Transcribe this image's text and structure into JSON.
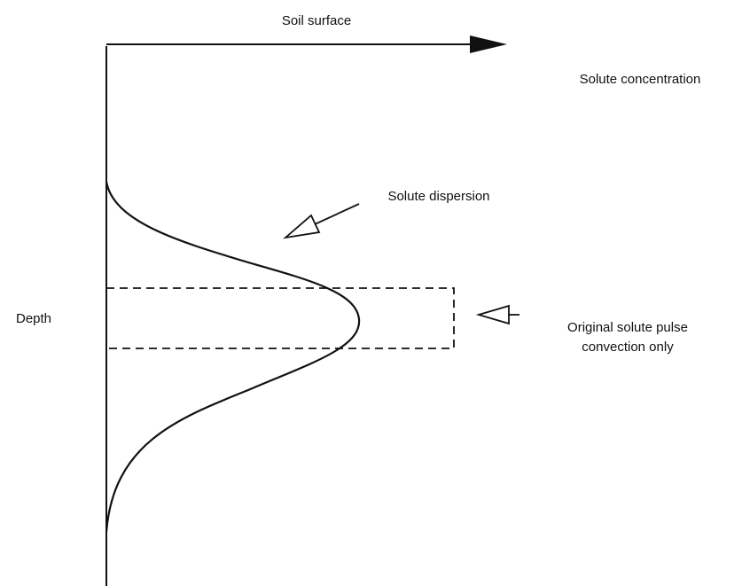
{
  "axes": {
    "x_label": "Soil surface",
    "x_quantity": "Solute concentration",
    "y_label": "Depth"
  },
  "annotations": {
    "dispersion": "Solute dispersion",
    "pulse_line1": "Original  solute pulse",
    "pulse_line2": "convection only"
  }
}
